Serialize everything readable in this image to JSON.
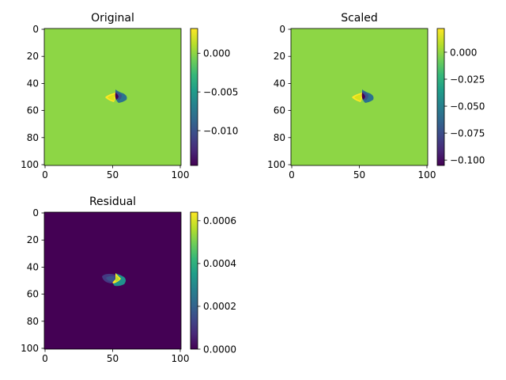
{
  "colors": {
    "viridis": [
      "#440154",
      "#482878",
      "#3e4989",
      "#31688e",
      "#26828e",
      "#1f9e89",
      "#35b779",
      "#6ece58",
      "#b5de2b",
      "#fde725"
    ]
  },
  "chart_data": [
    {
      "type": "heatmap",
      "title": "Original",
      "xlim": [
        0,
        100
      ],
      "ylim": [
        100,
        0
      ],
      "xticks": [
        0,
        50,
        100
      ],
      "yticks": [
        0,
        20,
        40,
        60,
        80,
        100
      ],
      "colorbar": {
        "vmin": -0.0145,
        "vmax": 0.0032,
        "ticks": [
          -0.01,
          -0.005,
          0.0
        ],
        "ticklabels": [
          "−0.010",
          "−0.005",
          "0.000"
        ]
      },
      "background_value": 0.0,
      "features": {
        "center": [
          52,
          50
        ],
        "positive_peak": 0.0032,
        "negative_peak": -0.0145
      }
    },
    {
      "type": "heatmap",
      "title": "Scaled",
      "xlim": [
        0,
        100
      ],
      "ylim": [
        100,
        0
      ],
      "xticks": [
        0,
        50,
        100
      ],
      "yticks": [
        0,
        20,
        40,
        60,
        80,
        100
      ],
      "colorbar": {
        "vmin": -0.105,
        "vmax": 0.022,
        "ticks": [
          -0.1,
          -0.075,
          -0.05,
          -0.025,
          0.0
        ],
        "ticklabels": [
          "−0.100",
          "−0.075",
          "−0.050",
          "−0.025",
          "0.000"
        ]
      },
      "background_value": 0.0,
      "features": {
        "center": [
          52,
          50
        ],
        "positive_peak": 0.022,
        "negative_peak": -0.105
      }
    },
    {
      "type": "heatmap",
      "title": "Residual",
      "xlim": [
        0,
        100
      ],
      "ylim": [
        100,
        0
      ],
      "xticks": [
        0,
        50,
        100
      ],
      "yticks": [
        0,
        20,
        40,
        60,
        80,
        100
      ],
      "colorbar": {
        "vmin": 0.0,
        "vmax": 0.00064,
        "ticks": [
          0.0,
          0.0002,
          0.0004,
          0.0006
        ],
        "ticklabels": [
          "0.0000",
          "0.0002",
          "0.0004",
          "0.0006"
        ]
      },
      "background_value": 0.0,
      "features": {
        "center": [
          52,
          50
        ],
        "peak": 0.00064
      }
    }
  ]
}
